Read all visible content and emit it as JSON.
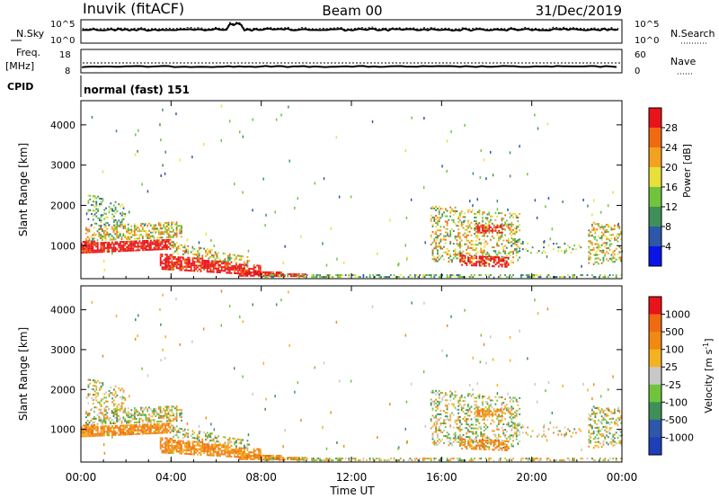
{
  "header": {
    "station": "Inuvik (fitACF)",
    "beam": "Beam 00",
    "date": "31/Dec/2019"
  },
  "noise_panel": {
    "left_label": "N.Sky",
    "right_label": "N.Search",
    "left_ticks": [
      "10^5",
      "10^0"
    ],
    "right_ticks": [
      "10^5",
      "10^0"
    ]
  },
  "freq_panel": {
    "left_label_1": "Freq.",
    "left_label_2": "[MHz]",
    "left_ticks": [
      "18",
      "8"
    ],
    "right_ticks": [
      "60",
      "0"
    ],
    "right_label": "Nave"
  },
  "cpid": {
    "label": "CPID",
    "value": "normal (fast) 151"
  },
  "chart_data": [
    {
      "type": "heatmap",
      "name": "power",
      "ylabel": "Slant Range [km]",
      "yticks": [
        "1000",
        "2000",
        "3000",
        "4000"
      ],
      "y_values": [
        1000,
        2000,
        3000,
        4000
      ],
      "ylim": [
        180,
        4600
      ],
      "xlim_hours": [
        0,
        24
      ],
      "colorbar_label": "Power [dB]",
      "colorbar_ticks": [
        "4",
        "8",
        "12",
        "16",
        "20",
        "24",
        "28"
      ],
      "colorbar_colors": [
        "#0a14e6",
        "#2d57a8",
        "#3f8f5a",
        "#6fc43c",
        "#e8e03a",
        "#f3a21f",
        "#f06a12",
        "#e8141a"
      ]
    },
    {
      "type": "heatmap",
      "name": "velocity",
      "ylabel": "Slant Range [km]",
      "yticks": [
        "1000",
        "2000",
        "3000",
        "4000"
      ],
      "y_values": [
        1000,
        2000,
        3000,
        4000
      ],
      "ylim": [
        180,
        4600
      ],
      "xlim_hours": [
        0,
        24
      ],
      "colorbar_label": "Velocity [m s^-1]",
      "colorbar_ticks": [
        "1000",
        "500",
        "100",
        "25",
        "-25",
        "-100",
        "-500",
        "-1000"
      ],
      "colorbar_colors": [
        "#1f3fb8",
        "#2d57a8",
        "#3f8f5a",
        "#6fc43c",
        "#c8c8c8",
        "#f3b21f",
        "#f08a12",
        "#f06a12",
        "#e8141a"
      ]
    }
  ],
  "x_axis": {
    "label": "Time UT",
    "ticks": [
      "00:00",
      "04:00",
      "08:00",
      "12:00",
      "16:00",
      "20:00",
      "00:00"
    ],
    "hours": [
      0,
      4,
      8,
      12,
      16,
      20,
      24
    ]
  }
}
